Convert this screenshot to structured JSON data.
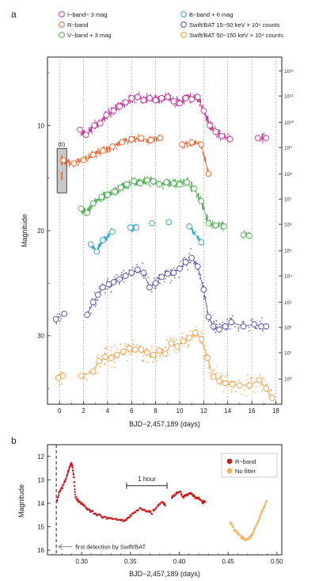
{
  "figure": {
    "panel_a_letter": "a",
    "panel_b_letter": "b"
  },
  "chart_data": [
    {
      "panel": "a",
      "type": "scatter",
      "xlabel": "BJD−2,457,189 (days)",
      "ylabel": "Magnitude",
      "y2label": "",
      "xlim": [
        -1,
        18.5
      ],
      "ylim": [
        36.5,
        3.5
      ],
      "y_inverted": true,
      "xticks": [
        0,
        2,
        4,
        6,
        8,
        10,
        12,
        14,
        16,
        18
      ],
      "yticks": [
        10,
        20,
        30
      ],
      "y2_tick_labels": [
        "10^12",
        "10^11",
        "10^10",
        "10^9",
        "10^8",
        "10^7",
        "10^6",
        "10^5",
        "10^4",
        "10^3",
        "10^2",
        "10^1",
        "10^0"
      ],
      "y2_tick_mags": [
        4.8,
        7.2,
        9.7,
        12.1,
        14.6,
        17.0,
        19.4,
        21.9,
        24.3,
        26.8,
        29.2,
        31.6,
        34.1
      ],
      "grid": "vertical dotted",
      "legend_position": "top",
      "inset_label": "(b)",
      "inset_box": {
        "x": [
          -0.2,
          0.6
        ],
        "mag": [
          12.2,
          16.4
        ]
      },
      "series": [
        {
          "name": "I−band− 3 mag",
          "color": "#c2399a",
          "binned": [
            [
              1.7,
              10.4
            ],
            [
              2.2,
              10.9
            ],
            [
              2.9,
              10.0
            ],
            [
              3.4,
              9.8
            ],
            [
              3.9,
              9.0
            ],
            [
              4.5,
              8.6
            ],
            [
              5.0,
              8.2
            ],
            [
              5.5,
              7.8
            ],
            [
              6.0,
              7.4
            ],
            [
              6.5,
              7.3
            ],
            [
              7.0,
              7.6
            ],
            [
              7.5,
              7.4
            ],
            [
              8.0,
              7.6
            ],
            [
              8.5,
              7.4
            ],
            [
              9.0,
              7.3
            ],
            [
              9.5,
              7.7
            ],
            [
              10.0,
              7.9
            ],
            [
              10.5,
              7.4
            ],
            [
              11.0,
              7.5
            ],
            [
              11.5,
              7.3
            ],
            [
              12.0,
              8.6
            ],
            [
              12.5,
              10.0
            ],
            [
              13.0,
              10.6
            ],
            [
              13.5,
              11.0
            ],
            [
              14.2,
              11.3
            ],
            [
              16.5,
              11.2
            ],
            [
              17.2,
              11.2
            ]
          ]
        },
        {
          "name": "R−band",
          "color": "#e8622a",
          "binned": [
            [
              0.3,
              13.3
            ],
            [
              1.2,
              13.6
            ],
            [
              2.0,
              13.3
            ],
            [
              2.8,
              12.8
            ],
            [
              3.6,
              12.4
            ],
            [
              4.4,
              12.0
            ],
            [
              5.2,
              11.6
            ],
            [
              6.0,
              11.3
            ],
            [
              6.8,
              11.2
            ],
            [
              7.6,
              11.4
            ],
            [
              8.4,
              11.2
            ],
            [
              10.2,
              11.8
            ],
            [
              11.0,
              11.6
            ],
            [
              11.8,
              11.8
            ],
            [
              12.4,
              14.6
            ]
          ]
        },
        {
          "name": "V−band + 3 mag",
          "color": "#4fae52",
          "binned": [
            [
              1.8,
              17.9
            ],
            [
              2.3,
              18.3
            ],
            [
              2.8,
              17.4
            ],
            [
              3.5,
              16.8
            ],
            [
              4.0,
              16.6
            ],
            [
              4.6,
              16.3
            ],
            [
              5.1,
              15.9
            ],
            [
              5.6,
              15.6
            ],
            [
              6.2,
              15.3
            ],
            [
              6.7,
              15.5
            ],
            [
              7.3,
              15.2
            ],
            [
              7.8,
              15.3
            ],
            [
              8.3,
              15.6
            ],
            [
              8.9,
              15.4
            ],
            [
              9.5,
              15.5
            ],
            [
              10.0,
              15.6
            ],
            [
              10.6,
              15.4
            ],
            [
              11.2,
              16.0
            ],
            [
              11.8,
              17.2
            ],
            [
              12.4,
              19.3
            ],
            [
              13.0,
              19.5
            ],
            [
              13.7,
              19.6
            ],
            [
              15.3,
              20.4
            ],
            [
              15.8,
              20.5
            ]
          ]
        },
        {
          "name": "B−band + 6 mag",
          "color": "#2e9fc1",
          "binned": [
            [
              2.6,
              21.3
            ],
            [
              3.1,
              22.0
            ],
            [
              3.6,
              20.9
            ],
            [
              4.4,
              20.1
            ],
            [
              5.9,
              19.7
            ],
            [
              6.4,
              19.7
            ],
            [
              7.7,
              19.3
            ],
            [
              9.1,
              19.2
            ],
            [
              10.8,
              19.6
            ],
            [
              11.8,
              21.1
            ]
          ]
        },
        {
          "name": "Swift/BAT 15−50 keV × 10^6 counts",
          "color": "#524aa0",
          "binned": [
            [
              -0.3,
              28.4
            ],
            [
              0.4,
              27.9
            ],
            [
              2.3,
              28.0
            ],
            [
              2.8,
              26.8
            ],
            [
              3.2,
              26.1
            ],
            [
              3.6,
              25.4
            ],
            [
              4.1,
              25.1
            ],
            [
              4.5,
              24.9
            ],
            [
              5.0,
              24.6
            ],
            [
              5.5,
              24.3
            ],
            [
              6.0,
              24.0
            ],
            [
              6.5,
              23.7
            ],
            [
              7.0,
              24.0
            ],
            [
              7.5,
              25.4
            ],
            [
              8.0,
              25.0
            ],
            [
              8.5,
              24.4
            ],
            [
              9.0,
              24.1
            ],
            [
              9.5,
              24.0
            ],
            [
              10.0,
              23.6
            ],
            [
              10.5,
              23.0
            ],
            [
              11.0,
              22.6
            ],
            [
              11.5,
              23.4
            ],
            [
              12.0,
              25.6
            ],
            [
              12.4,
              28.2
            ],
            [
              12.8,
              29.1
            ],
            [
              13.3,
              29.4
            ],
            [
              13.8,
              29.1
            ],
            [
              14.3,
              28.7
            ],
            [
              15.3,
              29.1
            ],
            [
              16.2,
              28.9
            ],
            [
              16.8,
              29.1
            ],
            [
              17.2,
              29.1
            ]
          ]
        },
        {
          "name": "Swift/BAT 50−150 keV × 10^4 counts",
          "color": "#f09a3e",
          "binned": [
            [
              -0.1,
              34.0
            ],
            [
              0.3,
              33.8
            ],
            [
              1.8,
              33.8
            ],
            [
              2.8,
              33.4
            ],
            [
              3.3,
              32.4
            ],
            [
              3.8,
              32.0
            ],
            [
              4.3,
              32.1
            ],
            [
              4.8,
              31.8
            ],
            [
              5.3,
              31.5
            ],
            [
              5.8,
              31.2
            ],
            [
              6.3,
              31.3
            ],
            [
              6.8,
              31.3
            ],
            [
              7.3,
              31.6
            ],
            [
              7.8,
              31.8
            ],
            [
              8.3,
              31.4
            ],
            [
              8.8,
              31.7
            ],
            [
              9.3,
              30.7
            ],
            [
              9.8,
              31.0
            ],
            [
              10.3,
              30.5
            ],
            [
              10.8,
              30.2
            ],
            [
              11.3,
              29.7
            ],
            [
              11.8,
              30.3
            ],
            [
              12.3,
              32.1
            ],
            [
              12.8,
              33.9
            ],
            [
              13.3,
              34.3
            ],
            [
              13.8,
              34.5
            ],
            [
              14.4,
              34.6
            ],
            [
              15.0,
              34.7
            ],
            [
              15.8,
              34.7
            ],
            [
              16.6,
              34.2
            ],
            [
              17.2,
              35.0
            ],
            [
              17.7,
              35.9
            ]
          ]
        }
      ]
    },
    {
      "panel": "b",
      "type": "scatter",
      "xlabel": "BJD−2,457,189 (days)",
      "ylabel": "Magnitude",
      "xlim": [
        0.265,
        0.505
      ],
      "ylim": [
        16.2,
        11.5
      ],
      "y_inverted": true,
      "xticks": [
        0.3,
        0.35,
        0.4,
        0.45,
        0.5
      ],
      "yticks": [
        12,
        13,
        14,
        15,
        16
      ],
      "annotation_bar": {
        "label": "1 hour",
        "x": [
          0.346,
          0.3875
        ],
        "mag": 13.25
      },
      "first_detection": {
        "x": 0.274,
        "label": "first detection by Swift/BAT"
      },
      "legend_position": "top-right",
      "series": [
        {
          "name": "R−band",
          "color": "#c42020",
          "segments": [
            [
              [
                0.2745,
                13.9
              ],
              [
                0.2775,
                13.5
              ],
              [
                0.2805,
                13.3
              ],
              [
                0.2835,
                13.0
              ],
              [
                0.2865,
                12.6
              ],
              [
                0.289,
                12.3
              ],
              [
                0.2905,
                12.4
              ],
              [
                0.292,
                12.9
              ],
              [
                0.2935,
                13.7
              ],
              [
                0.296,
                13.9
              ],
              [
                0.3,
                14.0
              ],
              [
                0.304,
                14.2
              ],
              [
                0.308,
                14.3
              ],
              [
                0.312,
                14.4
              ],
              [
                0.317,
                14.5
              ],
              [
                0.323,
                14.6
              ],
              [
                0.33,
                14.65
              ],
              [
                0.338,
                14.7
              ],
              [
                0.344,
                14.75
              ],
              [
                0.348,
                14.6
              ],
              [
                0.354,
                14.4
              ],
              [
                0.36,
                14.2
              ],
              [
                0.366,
                14.3
              ],
              [
                0.372,
                14.4
              ],
              [
                0.378,
                14.1
              ],
              [
                0.383,
                13.95
              ],
              [
                0.386,
                14.1
              ]
            ],
            [
              [
                0.392,
                13.75
              ],
              [
                0.396,
                13.6
              ],
              [
                0.4,
                13.5
              ],
              [
                0.404,
                13.7
              ],
              [
                0.408,
                13.65
              ],
              [
                0.412,
                13.55
              ],
              [
                0.416,
                13.75
              ],
              [
                0.42,
                13.8
              ],
              [
                0.424,
                13.95
              ],
              [
                0.427,
                13.95
              ]
            ]
          ]
        },
        {
          "name": "No filter",
          "color": "#f5b25a",
          "segments": [
            [
              [
                0.452,
                14.8
              ],
              [
                0.456,
                15.1
              ],
              [
                0.46,
                15.3
              ],
              [
                0.464,
                15.45
              ],
              [
                0.468,
                15.55
              ],
              [
                0.472,
                15.5
              ],
              [
                0.475,
                15.3
              ],
              [
                0.478,
                15.0
              ],
              [
                0.481,
                14.75
              ],
              [
                0.484,
                14.4
              ],
              [
                0.487,
                14.15
              ],
              [
                0.49,
                13.85
              ]
            ]
          ]
        }
      ]
    }
  ]
}
